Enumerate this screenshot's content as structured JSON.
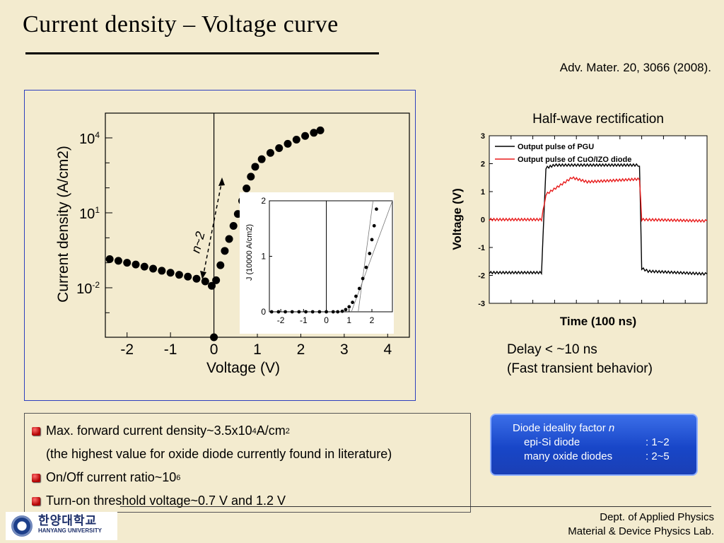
{
  "slide": {
    "title": "Current density – Voltage curve",
    "reference": "Adv. Mater. 20, 3066 (2008).",
    "footer_line1": "Dept. of Applied Physics",
    "footer_line2": "Material & Device Physics Lab.",
    "logo_korean": "한양대학교",
    "logo_english": "HANYANG UNIVERSITY"
  },
  "delay_note": {
    "line1": "Delay < ~10 ns",
    "line2": "(Fast transient behavior)"
  },
  "bullets": {
    "b1_text": "Max. forward current density~3.5x10",
    "b1_exp": "4",
    "b1_unit": " A/cm",
    "b1_unit_exp": "2",
    "b1_cont": "(the highest value for oxide diode currently found in literature)",
    "b2_text": "On/Off current ratio~10",
    "b2_exp": "6",
    "b3_text": "Turn-on threshold voltage~0.7 V and 1.2 V"
  },
  "ideality_box": {
    "heading": "Diode ideality factor ",
    "heading_symbol": "n",
    "row1_label": "epi-Si diode",
    "row1_value": ": 1~2",
    "row2_label": "many oxide diodes",
    "row2_value": ": 2~5"
  },
  "colors": {
    "pgu": "#000000",
    "cuo_izo": "#e81c1c",
    "ideality_box": "#1f4fd0",
    "bullet": "#c00000",
    "frame": "#2d3fbe"
  },
  "chart_data": [
    {
      "type": "scatter",
      "xlabel": "Voltage (V)",
      "ylabel": "Current density (A/cm2)",
      "y_scale": "log",
      "xlim": [
        -2.5,
        4.5
      ],
      "x_ticks": [
        -2,
        -1,
        0,
        1,
        2,
        3,
        4
      ],
      "y_ticks": [
        {
          "base": "10",
          "exp": "4"
        },
        {
          "base": "10",
          "exp": "1"
        },
        {
          "base": "10",
          "exp": "-2"
        }
      ],
      "annotation_slope": "n~2",
      "series": [
        {
          "points": [
            [
              -2.4,
              0.14
            ],
            [
              -2.2,
              0.12
            ],
            [
              -2.0,
              0.1
            ],
            [
              -1.8,
              0.085
            ],
            [
              -1.6,
              0.07
            ],
            [
              -1.4,
              0.058
            ],
            [
              -1.2,
              0.048
            ],
            [
              -1.0,
              0.04
            ],
            [
              -0.8,
              0.033
            ],
            [
              -0.6,
              0.028
            ],
            [
              -0.4,
              0.023
            ],
            [
              -0.2,
              0.018
            ],
            [
              -0.05,
              0.012
            ],
            [
              0.0,
              0.0001
            ],
            [
              0.05,
              0.02
            ],
            [
              0.15,
              0.08
            ],
            [
              0.25,
              0.3
            ],
            [
              0.35,
              0.9
            ],
            [
              0.45,
              3
            ],
            [
              0.55,
              9
            ],
            [
              0.65,
              30
            ],
            [
              0.75,
              95
            ],
            [
              0.85,
              280
            ],
            [
              0.95,
              700
            ],
            [
              1.1,
              1400
            ],
            [
              1.3,
              2500
            ],
            [
              1.5,
              3900
            ],
            [
              1.7,
              5800
            ],
            [
              1.9,
              8500
            ],
            [
              2.1,
              12000
            ],
            [
              2.3,
              16000
            ],
            [
              2.45,
              20000
            ]
          ]
        }
      ]
    },
    {
      "type": "scatter",
      "xlabel": "",
      "ylabel": "J (10000 A/cm2)",
      "ylim": [
        0,
        2
      ],
      "xlim": [
        -2.5,
        2.9
      ],
      "x_ticks": [
        -2,
        -1,
        0,
        1,
        2
      ],
      "y_ticks": [
        0,
        1,
        2
      ],
      "series": [
        {
          "points": [
            [
              -2.4,
              0
            ],
            [
              -2.1,
              0
            ],
            [
              -1.8,
              0
            ],
            [
              -1.5,
              0
            ],
            [
              -1.2,
              0
            ],
            [
              -0.9,
              0
            ],
            [
              -0.6,
              0
            ],
            [
              -0.3,
              0
            ],
            [
              0.0,
              0
            ],
            [
              0.3,
              0
            ],
            [
              0.5,
              0
            ],
            [
              0.7,
              0.01
            ],
            [
              0.85,
              0.04
            ],
            [
              1.0,
              0.09
            ],
            [
              1.15,
              0.17
            ],
            [
              1.3,
              0.28
            ],
            [
              1.45,
              0.42
            ],
            [
              1.6,
              0.6
            ],
            [
              1.75,
              0.8
            ],
            [
              1.9,
              1.05
            ],
            [
              2.0,
              1.3
            ],
            [
              2.1,
              1.55
            ],
            [
              2.2,
              1.85
            ]
          ]
        }
      ]
    },
    {
      "type": "line",
      "title": "Half-wave rectification",
      "xlabel": "Time (100 ns)",
      "ylabel": "Voltage (V)",
      "ylim": [
        -3,
        3
      ],
      "y_ticks": [
        3,
        2,
        1,
        0,
        -1,
        -2,
        -3
      ],
      "legend_position": "top-left",
      "series": [
        {
          "name": "Output pulse of PGU",
          "color": "#000000",
          "points": [
            [
              0,
              -1.9
            ],
            [
              2.4,
              -1.9
            ],
            [
              2.6,
              1.85
            ],
            [
              3.0,
              1.95
            ],
            [
              5.0,
              1.95
            ],
            [
              6.9,
              1.95
            ],
            [
              7.0,
              -1.75
            ],
            [
              7.3,
              -1.85
            ],
            [
              10,
              -1.95
            ]
          ]
        },
        {
          "name": "Output pulse of CuO/IZO diode",
          "color": "#e81c1c",
          "points": [
            [
              0,
              0
            ],
            [
              2.4,
              0
            ],
            [
              2.6,
              0.9
            ],
            [
              3.2,
              1.2
            ],
            [
              3.8,
              1.5
            ],
            [
              4.5,
              1.35
            ],
            [
              6.9,
              1.45
            ],
            [
              7.0,
              0
            ],
            [
              10,
              -0.05
            ]
          ]
        }
      ]
    }
  ]
}
